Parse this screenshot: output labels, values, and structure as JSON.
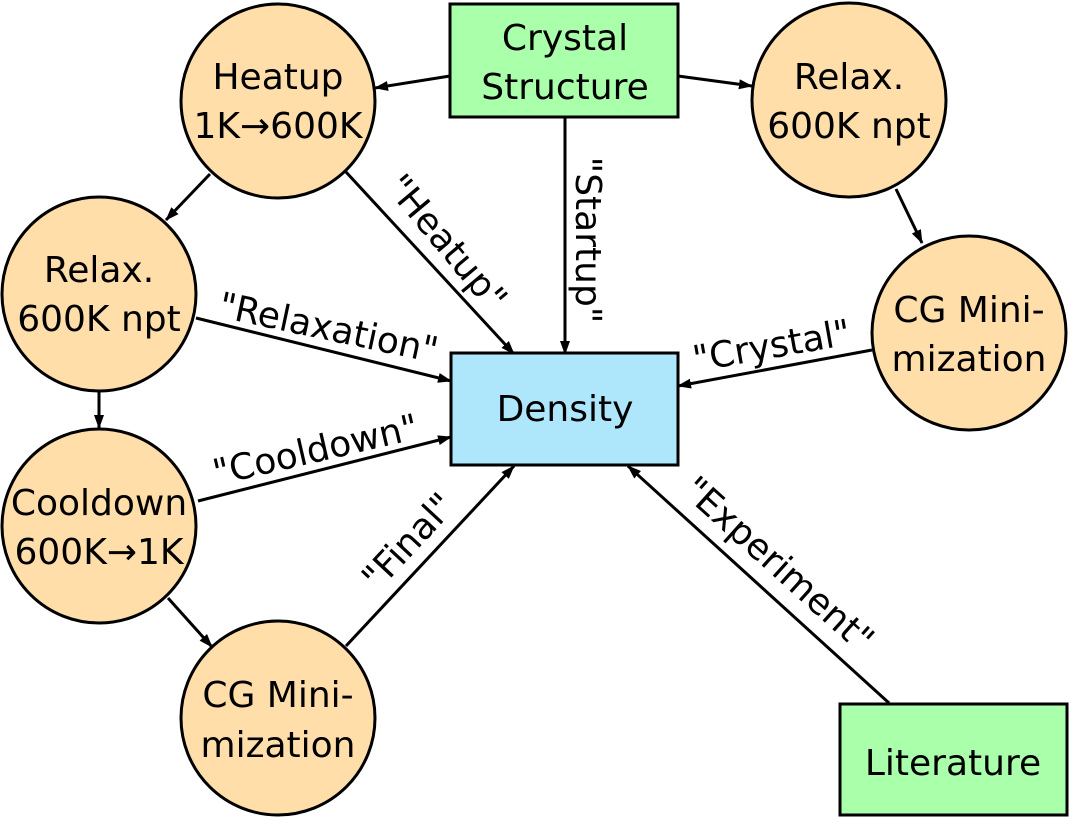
{
  "colors": {
    "process_node": "#ffdeaa",
    "source_node": "#aaffaa",
    "target_node": "#aee6fc"
  },
  "nodes": {
    "crystal_structure": [
      "Crystal",
      "Structure"
    ],
    "heatup": [
      "Heatup",
      "1K→600K"
    ],
    "relax_left": [
      "Relax.",
      "600K npt"
    ],
    "cooldown": [
      "Cooldown",
      "600K→1K"
    ],
    "cg_min_left": [
      "CG Mini-",
      "mization"
    ],
    "relax_right": [
      "Relax.",
      "600K npt"
    ],
    "cg_min_right": [
      "CG Mini-",
      "mization"
    ],
    "density": [
      "Density"
    ],
    "literature": [
      "Literature"
    ]
  },
  "edge_labels": {
    "heatup": "\"Heatup\"",
    "startup": "\"Startup\"",
    "relaxation": "\"Relaxation\"",
    "crystal": "\"Crystal\"",
    "cooldown": "\"Cooldown\"",
    "final": "\"Final\"",
    "experiment": "\"Experiment\""
  }
}
